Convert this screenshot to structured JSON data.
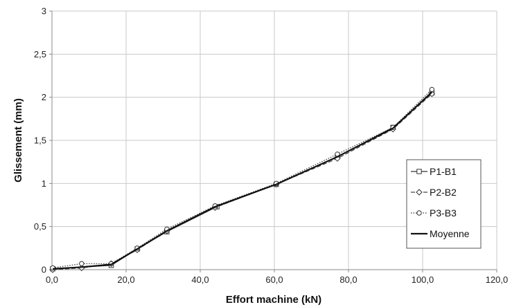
{
  "chart_data": {
    "type": "line",
    "title": "",
    "xlabel": "Effort machine (kN)",
    "ylabel": "Glissement  (mm)",
    "xlim": [
      0,
      120
    ],
    "ylim": [
      0,
      3
    ],
    "x_ticks": [
      "0,0",
      "20,0",
      "40,0",
      "60,0",
      "80,0",
      "100,0",
      "120,0"
    ],
    "y_ticks": [
      "0",
      "0,5",
      "1",
      "1,5",
      "2",
      "2,5",
      "3"
    ],
    "grid": true,
    "legend_position": "right",
    "series": [
      {
        "name": "P1-B1",
        "marker": "square",
        "dash": "solid",
        "points": [
          [
            0.2,
            0.01
          ],
          [
            16,
            0.05
          ],
          [
            23,
            0.24
          ],
          [
            31,
            0.44
          ],
          [
            44.5,
            0.73
          ],
          [
            60.5,
            0.99
          ],
          [
            77,
            1.31
          ],
          [
            92,
            1.65
          ],
          [
            102.5,
            2.05
          ]
        ]
      },
      {
        "name": "P2-B2",
        "marker": "diamond",
        "dash": "dashed",
        "points": [
          [
            0.2,
            0.0
          ],
          [
            8,
            0.02
          ],
          [
            16,
            0.07
          ],
          [
            23,
            0.23
          ],
          [
            31,
            0.45
          ],
          [
            44,
            0.72
          ],
          [
            60.5,
            0.99
          ],
          [
            77,
            1.29
          ],
          [
            92,
            1.63
          ],
          [
            102.5,
            2.04
          ]
        ]
      },
      {
        "name": "P3-B3",
        "marker": "circle",
        "dash": "dotted",
        "points": [
          [
            0.2,
            0.02
          ],
          [
            8,
            0.07
          ],
          [
            16,
            0.07
          ],
          [
            23,
            0.25
          ],
          [
            31,
            0.47
          ],
          [
            44,
            0.74
          ],
          [
            60.5,
            1.0
          ],
          [
            77,
            1.34
          ],
          [
            92,
            1.65
          ],
          [
            102.5,
            2.09
          ]
        ]
      },
      {
        "name": "Moyenne",
        "marker": "none",
        "dash": "solid-bold",
        "points": [
          [
            0.2,
            0.01
          ],
          [
            8,
            0.03
          ],
          [
            16,
            0.06
          ],
          [
            23,
            0.24
          ],
          [
            31,
            0.45
          ],
          [
            44,
            0.73
          ],
          [
            60.5,
            0.99
          ],
          [
            77,
            1.31
          ],
          [
            92,
            1.64
          ],
          [
            102.5,
            2.06
          ]
        ]
      }
    ]
  }
}
